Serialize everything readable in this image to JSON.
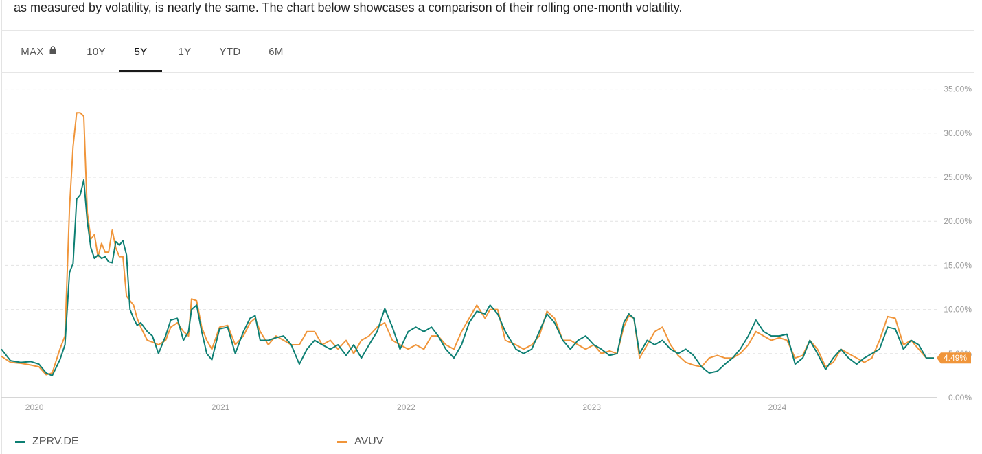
{
  "intro_text": "as measured by volatility, is nearly the same. The chart below showcases a comparison of their rolling one-month volatility.",
  "tabs": [
    {
      "label": "MAX",
      "locked": true,
      "active": false
    },
    {
      "label": "10Y",
      "locked": false,
      "active": false
    },
    {
      "label": "5Y",
      "locked": false,
      "active": true
    },
    {
      "label": "1Y",
      "locked": false,
      "active": false
    },
    {
      "label": "YTD",
      "locked": false,
      "active": false
    },
    {
      "label": "6M",
      "locked": false,
      "active": false
    }
  ],
  "icons": {
    "lock": "lock-icon"
  },
  "chart_data": {
    "type": "line",
    "title": "",
    "xlabel": "",
    "ylabel": "",
    "x_ticks": [
      "2020",
      "2021",
      "2022",
      "2023",
      "2024"
    ],
    "x_range": [
      "2019-10-28",
      "2024-11-04"
    ],
    "y_ticks": [
      "0.00%",
      "5.00%",
      "10.00%",
      "15.00%",
      "20.00%",
      "25.00%",
      "30.00%",
      "35.00%"
    ],
    "ylim": [
      0,
      35
    ],
    "grid": true,
    "legend_position": "bottom",
    "last_value_label": "4.49%",
    "series": [
      {
        "name": "ZPRV.DE",
        "color": "#0d7f73",
        "points": [
          [
            "2019-10-28",
            5.5
          ],
          [
            "2019-11-15",
            4.2
          ],
          [
            "2019-12-05",
            4.0
          ],
          [
            "2019-12-25",
            4.1
          ],
          [
            "2020-01-10",
            3.8
          ],
          [
            "2020-01-24",
            2.8
          ],
          [
            "2020-02-05",
            2.5
          ],
          [
            "2020-02-20",
            4.3
          ],
          [
            "2020-03-01",
            6.0
          ],
          [
            "2020-03-10",
            14.2
          ],
          [
            "2020-03-17",
            15.2
          ],
          [
            "2020-03-24",
            22.5
          ],
          [
            "2020-03-31",
            23.0
          ],
          [
            "2020-04-07",
            24.7
          ],
          [
            "2020-04-14",
            20.0
          ],
          [
            "2020-04-21",
            17.0
          ],
          [
            "2020-04-28",
            15.8
          ],
          [
            "2020-05-05",
            16.2
          ],
          [
            "2020-05-12",
            15.8
          ],
          [
            "2020-05-19",
            16.0
          ],
          [
            "2020-05-26",
            15.4
          ],
          [
            "2020-06-02",
            15.3
          ],
          [
            "2020-06-09",
            17.7
          ],
          [
            "2020-06-16",
            17.3
          ],
          [
            "2020-06-23",
            17.8
          ],
          [
            "2020-06-30",
            16.2
          ],
          [
            "2020-07-07",
            10.0
          ],
          [
            "2020-07-14",
            9.0
          ],
          [
            "2020-07-21",
            8.2
          ],
          [
            "2020-07-28",
            8.5
          ],
          [
            "2020-08-10",
            7.5
          ],
          [
            "2020-08-20",
            7.0
          ],
          [
            "2020-09-01",
            5.0
          ],
          [
            "2020-09-15",
            7.0
          ],
          [
            "2020-09-25",
            8.8
          ],
          [
            "2020-10-08",
            9.0
          ],
          [
            "2020-10-20",
            6.5
          ],
          [
            "2020-10-30",
            7.5
          ],
          [
            "2020-11-05",
            10.0
          ],
          [
            "2020-11-15",
            10.5
          ],
          [
            "2020-11-25",
            7.5
          ],
          [
            "2020-12-05",
            5.0
          ],
          [
            "2020-12-15",
            4.3
          ],
          [
            "2020-12-30",
            7.8
          ],
          [
            "2021-01-15",
            8.0
          ],
          [
            "2021-01-30",
            5.0
          ],
          [
            "2021-02-15",
            7.5
          ],
          [
            "2021-02-28",
            9.0
          ],
          [
            "2021-03-10",
            9.3
          ],
          [
            "2021-03-20",
            6.5
          ],
          [
            "2021-04-05",
            6.5
          ],
          [
            "2021-04-20",
            6.8
          ],
          [
            "2021-05-05",
            7.0
          ],
          [
            "2021-05-20",
            6.0
          ],
          [
            "2021-06-05",
            3.8
          ],
          [
            "2021-06-20",
            5.5
          ],
          [
            "2021-07-05",
            6.5
          ],
          [
            "2021-07-20",
            6.0
          ],
          [
            "2021-08-05",
            5.5
          ],
          [
            "2021-08-20",
            6.0
          ],
          [
            "2021-09-05",
            4.8
          ],
          [
            "2021-09-20",
            6.0
          ],
          [
            "2021-10-05",
            4.5
          ],
          [
            "2021-10-20",
            6.0
          ],
          [
            "2021-11-05",
            7.5
          ],
          [
            "2021-11-20",
            10.1
          ],
          [
            "2021-12-05",
            8.0
          ],
          [
            "2021-12-20",
            5.5
          ],
          [
            "2022-01-05",
            7.5
          ],
          [
            "2022-01-20",
            8.0
          ],
          [
            "2022-02-05",
            7.5
          ],
          [
            "2022-02-20",
            8.0
          ],
          [
            "2022-03-05",
            7.0
          ],
          [
            "2022-03-20",
            5.5
          ],
          [
            "2022-04-05",
            4.5
          ],
          [
            "2022-04-20",
            6.0
          ],
          [
            "2022-05-05",
            8.5
          ],
          [
            "2022-05-20",
            9.8
          ],
          [
            "2022-06-05",
            9.5
          ],
          [
            "2022-06-15",
            10.5
          ],
          [
            "2022-06-30",
            9.5
          ],
          [
            "2022-07-15",
            7.5
          ],
          [
            "2022-08-05",
            5.5
          ],
          [
            "2022-08-20",
            5.0
          ],
          [
            "2022-09-05",
            5.5
          ],
          [
            "2022-09-20",
            7.5
          ],
          [
            "2022-10-05",
            9.5
          ],
          [
            "2022-10-20",
            8.5
          ],
          [
            "2022-11-05",
            6.5
          ],
          [
            "2022-11-20",
            5.5
          ],
          [
            "2022-12-05",
            6.5
          ],
          [
            "2022-12-20",
            7.0
          ],
          [
            "2023-01-05",
            6.0
          ],
          [
            "2023-01-20",
            5.5
          ],
          [
            "2023-02-05",
            4.8
          ],
          [
            "2023-02-20",
            5.0
          ],
          [
            "2023-03-05",
            8.5
          ],
          [
            "2023-03-15",
            9.5
          ],
          [
            "2023-03-25",
            9.0
          ],
          [
            "2023-04-05",
            5.0
          ],
          [
            "2023-04-20",
            6.5
          ],
          [
            "2023-05-05",
            6.0
          ],
          [
            "2023-05-20",
            6.5
          ],
          [
            "2023-06-05",
            5.5
          ],
          [
            "2023-06-20",
            5.0
          ],
          [
            "2023-07-05",
            5.5
          ],
          [
            "2023-07-20",
            4.8
          ],
          [
            "2023-08-05",
            3.5
          ],
          [
            "2023-08-20",
            2.8
          ],
          [
            "2023-09-05",
            3.0
          ],
          [
            "2023-09-20",
            3.8
          ],
          [
            "2023-10-05",
            4.5
          ],
          [
            "2023-10-20",
            5.5
          ],
          [
            "2023-11-05",
            7.0
          ],
          [
            "2023-11-20",
            8.8
          ],
          [
            "2023-12-05",
            7.5
          ],
          [
            "2023-12-20",
            7.0
          ],
          [
            "2024-01-05",
            7.0
          ],
          [
            "2024-01-20",
            7.2
          ],
          [
            "2024-02-05",
            3.8
          ],
          [
            "2024-02-20",
            4.5
          ],
          [
            "2024-03-05",
            6.5
          ],
          [
            "2024-03-20",
            5.0
          ],
          [
            "2024-04-05",
            3.2
          ],
          [
            "2024-04-20",
            4.5
          ],
          [
            "2024-05-05",
            5.5
          ],
          [
            "2024-05-20",
            4.5
          ],
          [
            "2024-06-05",
            3.8
          ],
          [
            "2024-06-20",
            4.5
          ],
          [
            "2024-07-05",
            5.0
          ],
          [
            "2024-07-20",
            5.5
          ],
          [
            "2024-08-05",
            8.0
          ],
          [
            "2024-08-20",
            7.8
          ],
          [
            "2024-09-05",
            5.5
          ],
          [
            "2024-09-20",
            6.5
          ],
          [
            "2024-10-05",
            6.0
          ],
          [
            "2024-10-20",
            4.5
          ],
          [
            "2024-11-04",
            4.5
          ]
        ]
      },
      {
        "name": "AVUV",
        "color": "#f0953a",
        "points": [
          [
            "2019-10-28",
            4.7
          ],
          [
            "2019-11-15",
            4.0
          ],
          [
            "2019-12-05",
            3.9
          ],
          [
            "2019-12-25",
            3.7
          ],
          [
            "2020-01-10",
            3.5
          ],
          [
            "2020-01-24",
            2.6
          ],
          [
            "2020-02-05",
            2.8
          ],
          [
            "2020-02-20",
            5.5
          ],
          [
            "2020-03-01",
            7.0
          ],
          [
            "2020-03-10",
            21.5
          ],
          [
            "2020-03-17",
            28.5
          ],
          [
            "2020-03-24",
            32.3
          ],
          [
            "2020-03-31",
            32.3
          ],
          [
            "2020-04-07",
            31.9
          ],
          [
            "2020-04-14",
            21.0
          ],
          [
            "2020-04-21",
            18.0
          ],
          [
            "2020-04-28",
            18.5
          ],
          [
            "2020-05-05",
            16.0
          ],
          [
            "2020-05-12",
            17.5
          ],
          [
            "2020-05-19",
            16.5
          ],
          [
            "2020-05-26",
            16.5
          ],
          [
            "2020-06-02",
            19.0
          ],
          [
            "2020-06-09",
            17.0
          ],
          [
            "2020-06-16",
            16.0
          ],
          [
            "2020-06-23",
            16.0
          ],
          [
            "2020-06-30",
            11.5
          ],
          [
            "2020-07-07",
            11.0
          ],
          [
            "2020-07-14",
            10.5
          ],
          [
            "2020-07-21",
            9.0
          ],
          [
            "2020-07-28",
            8.0
          ],
          [
            "2020-08-10",
            6.5
          ],
          [
            "2020-08-20",
            6.3
          ],
          [
            "2020-09-01",
            6.0
          ],
          [
            "2020-09-15",
            6.5
          ],
          [
            "2020-09-25",
            8.0
          ],
          [
            "2020-10-08",
            8.5
          ],
          [
            "2020-10-20",
            7.5
          ],
          [
            "2020-10-30",
            7.0
          ],
          [
            "2020-11-05",
            11.2
          ],
          [
            "2020-11-15",
            11.0
          ],
          [
            "2020-11-25",
            8.0
          ],
          [
            "2020-12-05",
            6.5
          ],
          [
            "2020-12-15",
            5.5
          ],
          [
            "2020-12-30",
            8.0
          ],
          [
            "2021-01-15",
            8.2
          ],
          [
            "2021-01-30",
            6.0
          ],
          [
            "2021-02-15",
            7.0
          ],
          [
            "2021-02-28",
            8.5
          ],
          [
            "2021-03-10",
            9.0
          ],
          [
            "2021-03-20",
            7.5
          ],
          [
            "2021-04-05",
            6.0
          ],
          [
            "2021-04-20",
            7.0
          ],
          [
            "2021-05-05",
            6.5
          ],
          [
            "2021-05-20",
            6.0
          ],
          [
            "2021-06-05",
            6.0
          ],
          [
            "2021-06-20",
            7.5
          ],
          [
            "2021-07-05",
            7.5
          ],
          [
            "2021-07-20",
            6.0
          ],
          [
            "2021-08-05",
            6.5
          ],
          [
            "2021-08-20",
            5.5
          ],
          [
            "2021-09-05",
            6.5
          ],
          [
            "2021-09-20",
            5.0
          ],
          [
            "2021-10-05",
            6.5
          ],
          [
            "2021-10-20",
            7.0
          ],
          [
            "2021-11-05",
            8.0
          ],
          [
            "2021-11-20",
            8.5
          ],
          [
            "2021-12-05",
            6.5
          ],
          [
            "2021-12-20",
            6.0
          ],
          [
            "2022-01-05",
            5.5
          ],
          [
            "2022-01-20",
            6.0
          ],
          [
            "2022-02-05",
            5.5
          ],
          [
            "2022-02-20",
            7.0
          ],
          [
            "2022-03-05",
            7.0
          ],
          [
            "2022-03-20",
            6.0
          ],
          [
            "2022-04-05",
            5.5
          ],
          [
            "2022-04-20",
            7.5
          ],
          [
            "2022-05-05",
            9.0
          ],
          [
            "2022-05-20",
            10.5
          ],
          [
            "2022-06-05",
            9.0
          ],
          [
            "2022-06-15",
            10.0
          ],
          [
            "2022-06-30",
            10.0
          ],
          [
            "2022-07-15",
            6.5
          ],
          [
            "2022-08-05",
            6.0
          ],
          [
            "2022-08-20",
            5.5
          ],
          [
            "2022-09-05",
            6.0
          ],
          [
            "2022-09-20",
            7.0
          ],
          [
            "2022-10-05",
            9.8
          ],
          [
            "2022-10-20",
            9.0
          ],
          [
            "2022-11-05",
            6.5
          ],
          [
            "2022-11-20",
            6.5
          ],
          [
            "2022-12-05",
            6.0
          ],
          [
            "2022-12-20",
            5.5
          ],
          [
            "2023-01-05",
            6.0
          ],
          [
            "2023-01-20",
            5.0
          ],
          [
            "2023-02-05",
            5.3
          ],
          [
            "2023-02-20",
            5.0
          ],
          [
            "2023-03-05",
            8.0
          ],
          [
            "2023-03-15",
            9.3
          ],
          [
            "2023-03-25",
            9.0
          ],
          [
            "2023-04-05",
            4.5
          ],
          [
            "2023-04-20",
            6.0
          ],
          [
            "2023-05-05",
            7.5
          ],
          [
            "2023-05-20",
            8.0
          ],
          [
            "2023-06-05",
            6.0
          ],
          [
            "2023-06-20",
            4.8
          ],
          [
            "2023-07-05",
            4.0
          ],
          [
            "2023-07-20",
            3.7
          ],
          [
            "2023-08-05",
            3.5
          ],
          [
            "2023-08-20",
            4.5
          ],
          [
            "2023-09-05",
            4.8
          ],
          [
            "2023-09-20",
            4.5
          ],
          [
            "2023-10-05",
            4.5
          ],
          [
            "2023-10-20",
            5.0
          ],
          [
            "2023-11-05",
            6.0
          ],
          [
            "2023-11-20",
            7.5
          ],
          [
            "2023-12-05",
            7.0
          ],
          [
            "2023-12-20",
            6.5
          ],
          [
            "2024-01-05",
            6.8
          ],
          [
            "2024-01-20",
            6.5
          ],
          [
            "2024-02-05",
            4.5
          ],
          [
            "2024-02-20",
            4.8
          ],
          [
            "2024-03-05",
            6.5
          ],
          [
            "2024-03-20",
            5.5
          ],
          [
            "2024-04-05",
            3.5
          ],
          [
            "2024-04-20",
            4.0
          ],
          [
            "2024-05-05",
            5.5
          ],
          [
            "2024-05-20",
            5.0
          ],
          [
            "2024-06-05",
            4.5
          ],
          [
            "2024-06-20",
            4.0
          ],
          [
            "2024-07-05",
            4.5
          ],
          [
            "2024-07-20",
            6.5
          ],
          [
            "2024-08-05",
            9.2
          ],
          [
            "2024-08-20",
            9.0
          ],
          [
            "2024-09-05",
            6.0
          ],
          [
            "2024-09-20",
            6.5
          ],
          [
            "2024-10-05",
            5.5
          ],
          [
            "2024-10-20",
            4.5
          ],
          [
            "2024-11-04",
            4.5
          ]
        ]
      }
    ]
  }
}
